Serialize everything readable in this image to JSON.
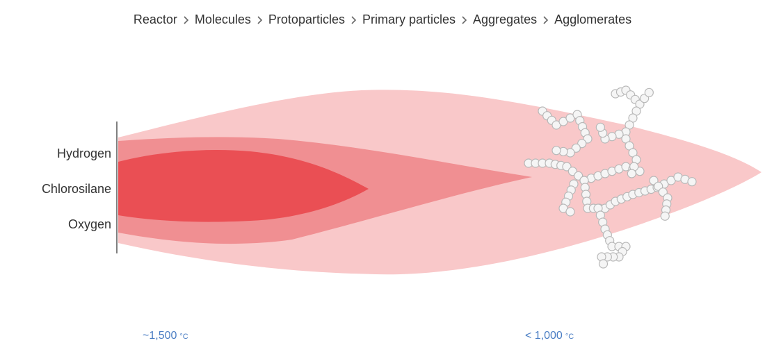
{
  "breadcrumb": [
    "Reactor",
    "Molecules",
    "Protoparticles",
    "Primary particles",
    "Aggregates",
    "Agglomerates"
  ],
  "inputs": [
    "Hydrogen",
    "Chlorosilane",
    "Oxygen"
  ],
  "temperatures": [
    {
      "value": "~1,500",
      "unit": "°C"
    },
    {
      "value": "< 1,000",
      "unit": "°C"
    }
  ]
}
